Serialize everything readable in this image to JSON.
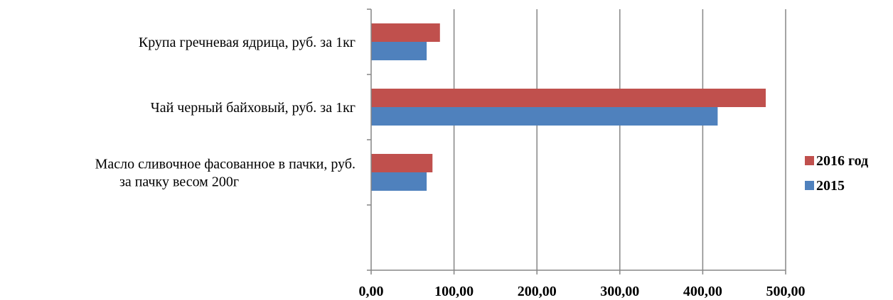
{
  "chart_data": {
    "type": "bar",
    "orientation": "horizontal",
    "categories": [
      "Масло сливочное фасованное в пачки, руб. за пачку весом 200г",
      "Чай черный байховый, руб. за 1кг",
      "Крупа гречневая ядрица, руб. за 1кг"
    ],
    "category_lines": [
      [
        "Масло сливочное фасованное в пачки, руб.",
        "за пачку весом 200г"
      ],
      [
        "Чай черный байховый, руб. за 1кг"
      ],
      [
        "Крупа гречневая ядрица, руб. за 1кг"
      ]
    ],
    "series": [
      {
        "name": "2015",
        "color": "#4F81BD",
        "values": [
          67,
          418,
          67
        ]
      },
      {
        "name": "2016 год",
        "color": "#C0504D",
        "values": [
          74,
          476,
          83
        ]
      }
    ],
    "xlim": [
      0,
      500
    ],
    "x_ticks": [
      "0,00",
      "100,00",
      "200,00",
      "300,00",
      "400,00",
      "500,00"
    ],
    "grid": "vertical",
    "legend": {
      "position": "right",
      "order": [
        "2016 год",
        "2015"
      ]
    },
    "title": "",
    "xlabel": "",
    "ylabel": ""
  }
}
